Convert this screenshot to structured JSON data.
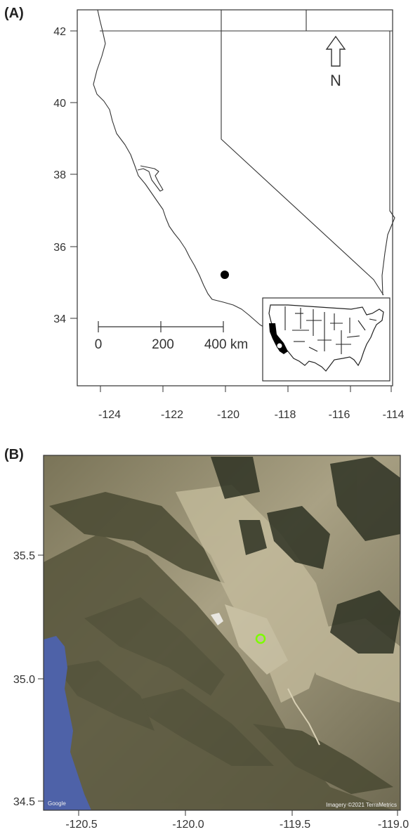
{
  "panel_a": {
    "label": "(A)",
    "y_ticks": [
      "42",
      "40",
      "38",
      "36",
      "34"
    ],
    "x_ticks": [
      "-124",
      "-122",
      "-120",
      "-118",
      "-116",
      "-114"
    ],
    "north_label": "N",
    "scale_bar": {
      "labels": [
        "0",
        "200",
        "400 km"
      ]
    },
    "site_marker": {
      "lon": -119.9,
      "lat": 35.2,
      "color": "#000000"
    }
  },
  "panel_b": {
    "label": "(B)",
    "y_ticks": [
      "35.5",
      "35.0",
      "34.5"
    ],
    "x_ticks": [
      "-120.5",
      "-120.0",
      "-119.5",
      "-119.0"
    ],
    "site_marker": {
      "lon": -119.68,
      "lat": 35.16,
      "color": "#7CFC00"
    },
    "attribution_left": "Google",
    "attribution_right": "Imagery ©2021 TerraMetrics"
  }
}
